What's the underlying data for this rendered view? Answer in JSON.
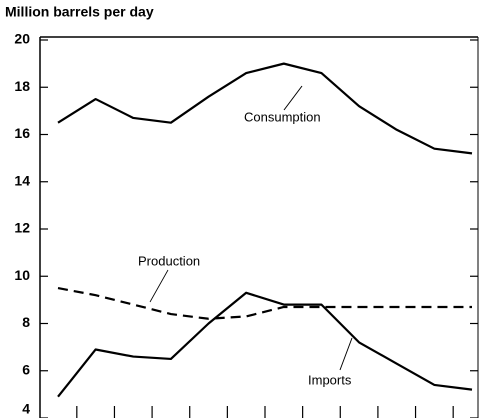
{
  "chart_data": {
    "type": "line",
    "title": "Million barrels per day",
    "categories": [
      null,
      null,
      null,
      null,
      null,
      null,
      null,
      null,
      null,
      null,
      null,
      null
    ],
    "series": [
      {
        "name": "Consumption",
        "color": "#000000",
        "dash": false,
        "values": [
          16.5,
          17.5,
          16.7,
          16.5,
          17.6,
          18.6,
          19.0,
          18.6,
          17.2,
          16.2,
          15.4,
          15.2
        ]
      },
      {
        "name": "Production",
        "color": "#000000",
        "dash": true,
        "values": [
          9.5,
          9.2,
          8.8,
          8.4,
          8.2,
          8.3,
          8.7,
          8.7,
          8.7,
          8.7,
          8.7,
          8.7
        ]
      },
      {
        "name": "Imports",
        "color": "#000000",
        "dash": false,
        "values": [
          4.9,
          6.9,
          6.6,
          6.5,
          8.0,
          9.3,
          8.8,
          8.8,
          7.2,
          6.3,
          5.4,
          5.2
        ]
      }
    ],
    "ylim": [
      4,
      20
    ],
    "yticks": [
      4,
      6,
      8,
      10,
      12,
      14,
      16,
      18,
      20
    ],
    "grid": false
  }
}
